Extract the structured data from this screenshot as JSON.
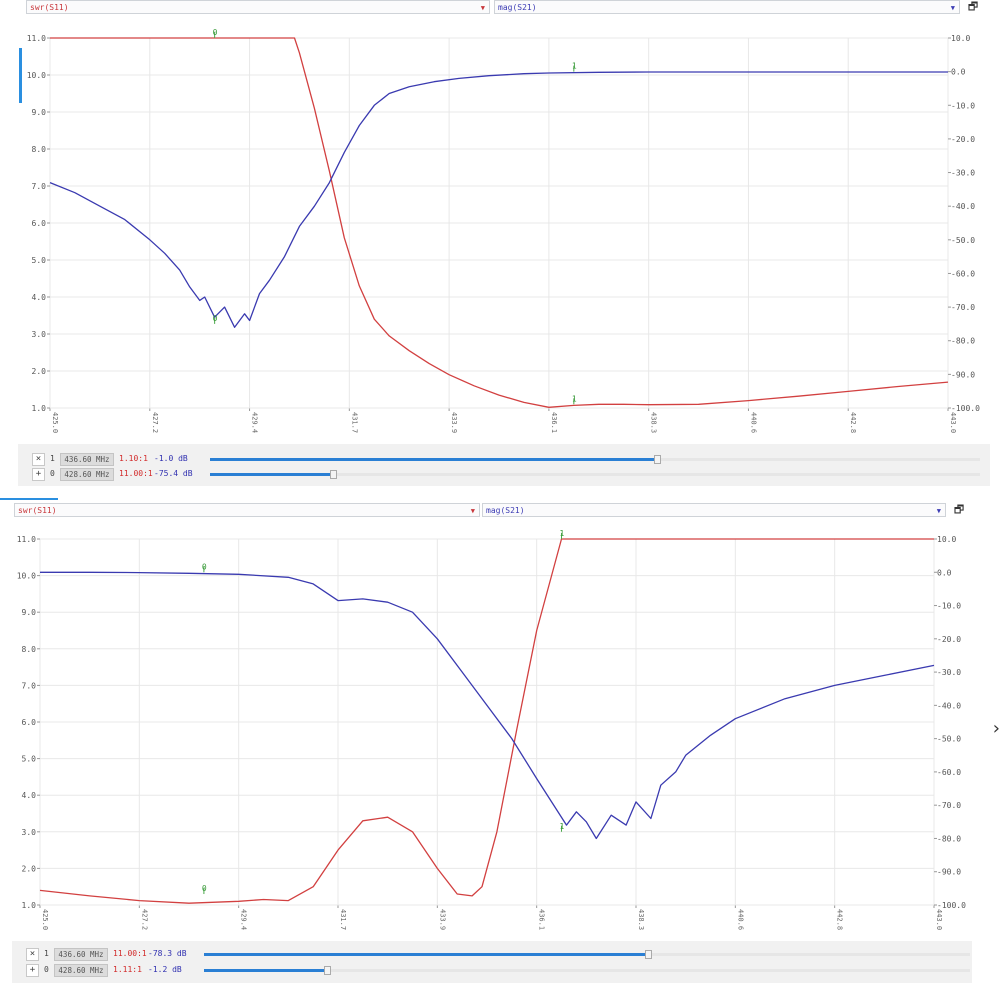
{
  "charts": [
    {
      "swr_select": "swr(S11)",
      "mag_select": "mag(S21)",
      "markers": [
        {
          "button": "×",
          "index": "1",
          "freq": "436.60 MHz",
          "swr": "1.10:1",
          "mag": "-1.0 dB",
          "slider": 0.58
        },
        {
          "button": "+",
          "index": "0",
          "freq": "428.60 MHz",
          "swr": "11.00:1",
          "mag": "-75.4 dB",
          "slider": 0.16
        }
      ]
    },
    {
      "swr_select": "swr(S11)",
      "mag_select": "mag(S21)",
      "markers": [
        {
          "button": "×",
          "index": "1",
          "freq": "436.60 MHz",
          "swr": "11.00:1",
          "mag": "-78.3 dB",
          "slider": 0.58
        },
        {
          "button": "+",
          "index": "0",
          "freq": "428.60 MHz",
          "swr": "1.11:1",
          "mag": "-1.2 dB",
          "slider": 0.16
        }
      ]
    }
  ],
  "chart_data": [
    {
      "type": "line",
      "xlabel": "",
      "ylabel": "",
      "xlim": [
        425.0,
        443.0
      ],
      "x_ticks": [
        "425.0",
        "427.2",
        "429.4",
        "431.7",
        "433.9",
        "436.1",
        "438.3",
        "440.6",
        "442.8",
        "443.0"
      ],
      "y_left_ticks": [
        "11.0",
        "10.0",
        "9.0",
        "8.0",
        "7.0",
        "6.0",
        "5.0",
        "4.0",
        "3.0",
        "2.0",
        "1.0"
      ],
      "y_right_ticks": [
        "10.0",
        "0.0",
        "-10.0",
        "-20.0",
        "-30.0",
        "-40.0",
        "-50.0",
        "-60.0",
        "-70.0",
        "-80.0",
        "-90.0",
        "-100.0"
      ],
      "ylim_left": [
        1,
        11
      ],
      "ylim_right": [
        -100,
        10
      ],
      "grid": true,
      "marker_labels": [
        {
          "text": "1",
          "x": 435.5,
          "axis": "right",
          "y": 0.0
        },
        {
          "text": "1",
          "x": 435.5,
          "axis": "left",
          "y": 1.1
        },
        {
          "text": "0",
          "x": 428.3,
          "axis": "left",
          "y": 11.0
        },
        {
          "text": "0",
          "x": 428.3,
          "axis": "right",
          "y": -75.0
        }
      ],
      "series": [
        {
          "axis": "left",
          "color": "#d24040",
          "x": [
            425.0,
            426.0,
            427.0,
            428.0,
            429.0,
            429.9,
            430.0,
            430.3,
            430.6,
            430.9,
            431.2,
            431.5,
            431.8,
            432.2,
            432.6,
            433.0,
            433.5,
            434.0,
            434.5,
            435.0,
            435.5,
            436.0,
            436.5,
            437.0,
            438.0,
            439.0,
            440.0,
            441.0,
            442.0,
            443.0
          ],
          "y": [
            11,
            11,
            11,
            11,
            11,
            11,
            10.6,
            9.1,
            7.4,
            5.6,
            4.3,
            3.4,
            2.95,
            2.55,
            2.2,
            1.9,
            1.6,
            1.35,
            1.15,
            1.02,
            1.07,
            1.1,
            1.1,
            1.09,
            1.1,
            1.2,
            1.32,
            1.45,
            1.58,
            1.7
          ]
        },
        {
          "axis": "right",
          "color": "#3a3ab0",
          "x": [
            425.0,
            425.5,
            426.0,
            426.5,
            427.0,
            427.3,
            427.6,
            427.8,
            428.0,
            428.1,
            428.3,
            428.5,
            428.7,
            428.9,
            429.0,
            429.2,
            429.4,
            429.7,
            430.0,
            430.3,
            430.6,
            430.9,
            431.2,
            431.5,
            431.8,
            432.2,
            432.7,
            433.2,
            433.8,
            434.5,
            435.0,
            436.0,
            437.0,
            438.0,
            440.0,
            443.0
          ],
          "y": [
            -33,
            -36,
            -40,
            -44,
            -50,
            -54,
            -59,
            -64,
            -68,
            -67,
            -73,
            -70,
            -76,
            -72,
            -74,
            -66,
            -62,
            -55,
            -46,
            -40,
            -33,
            -24,
            -16,
            -10,
            -6.5,
            -4.5,
            -3.0,
            -2.0,
            -1.2,
            -0.6,
            -0.4,
            -0.2,
            -0.1,
            -0.1,
            -0.1,
            -0.1
          ]
        }
      ]
    },
    {
      "type": "line",
      "xlabel": "",
      "ylabel": "",
      "xlim": [
        425.0,
        443.0
      ],
      "x_ticks": [
        "425.0",
        "427.2",
        "429.4",
        "431.7",
        "433.9",
        "436.1",
        "438.3",
        "440.6",
        "442.8",
        "443.0"
      ],
      "y_left_ticks": [
        "11.0",
        "10.0",
        "9.0",
        "8.0",
        "7.0",
        "6.0",
        "5.0",
        "4.0",
        "3.0",
        "2.0",
        "1.0"
      ],
      "y_right_ticks": [
        "10.0",
        "0.0",
        "-10.0",
        "-20.0",
        "-30.0",
        "-40.0",
        "-50.0",
        "-60.0",
        "-70.0",
        "-80.0",
        "-90.0",
        "-100.0"
      ],
      "ylim_left": [
        1,
        11
      ],
      "ylim_right": [
        -100,
        10
      ],
      "grid": true,
      "marker_labels": [
        {
          "text": "0",
          "x": 428.3,
          "axis": "right",
          "y": 0.0
        },
        {
          "text": "0",
          "x": 428.3,
          "axis": "left",
          "y": 1.3
        },
        {
          "text": "1",
          "x": 435.5,
          "axis": "left",
          "y": 11.0
        },
        {
          "text": "1",
          "x": 435.5,
          "axis": "right",
          "y": -78.0
        }
      ],
      "series": [
        {
          "axis": "left",
          "color": "#d24040",
          "x": [
            425.0,
            426.0,
            427.0,
            428.0,
            429.0,
            429.5,
            430.0,
            430.5,
            431.0,
            431.5,
            432.0,
            432.5,
            433.0,
            433.4,
            433.7,
            433.9,
            434.2,
            434.6,
            435.0,
            435.5,
            436.0,
            437.0,
            438.0,
            439.0,
            440.0,
            441.0,
            442.0,
            443.0
          ],
          "y": [
            1.4,
            1.25,
            1.12,
            1.05,
            1.1,
            1.15,
            1.12,
            1.5,
            2.5,
            3.3,
            3.4,
            3.0,
            2.0,
            1.3,
            1.25,
            1.5,
            3.0,
            5.8,
            8.5,
            11,
            11,
            11,
            11,
            11,
            11,
            11,
            11,
            11
          ]
        },
        {
          "axis": "right",
          "color": "#3a3ab0",
          "x": [
            425.0,
            426.0,
            427.0,
            428.0,
            429.0,
            430.0,
            430.5,
            431.0,
            431.5,
            432.0,
            432.5,
            433.0,
            433.5,
            434.0,
            434.5,
            435.0,
            435.3,
            435.6,
            435.8,
            436.0,
            436.2,
            436.5,
            436.8,
            437.0,
            437.3,
            437.5,
            437.8,
            438.0,
            438.5,
            439.0,
            440.0,
            441.0,
            442.0,
            443.0
          ],
          "y": [
            0.0,
            0.0,
            -0.1,
            -0.3,
            -0.6,
            -1.5,
            -3.5,
            -8.5,
            -8.0,
            -9.0,
            -12,
            -20,
            -30,
            -40,
            -50,
            -62,
            -69,
            -76,
            -72,
            -75,
            -80,
            -73,
            -76,
            -69,
            -74,
            -64,
            -60,
            -55,
            -49,
            -44,
            -38,
            -34,
            -31,
            -28
          ]
        }
      ]
    }
  ]
}
